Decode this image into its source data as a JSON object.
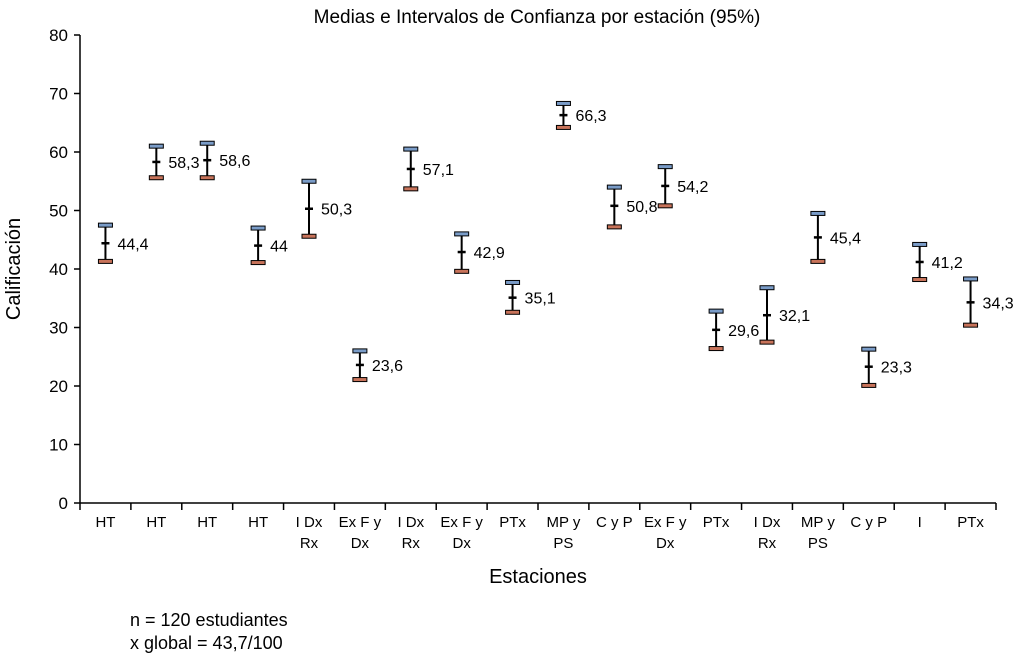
{
  "chart_data": {
    "type": "errorbar",
    "title": "Medias e Intervalos de Confianza por estación (95%)",
    "xlabel": "Estaciones",
    "ylabel": "Calificación",
    "ylim": [
      0,
      80
    ],
    "yticks": [
      0,
      10,
      20,
      30,
      40,
      50,
      60,
      70,
      80
    ],
    "grid": false,
    "categories": [
      [
        "HT"
      ],
      [
        "HT"
      ],
      [
        "HT"
      ],
      [
        "HT"
      ],
      [
        "I Dx",
        "Rx"
      ],
      [
        "Ex F y",
        "Dx"
      ],
      [
        "I Dx",
        "Rx"
      ],
      [
        "Ex F y",
        "Dx"
      ],
      [
        "PTx"
      ],
      [
        "MP y",
        "PS"
      ],
      [
        "C y P"
      ],
      [
        "Ex F y",
        "Dx"
      ],
      [
        "PTx"
      ],
      [
        "I Dx",
        "Rx"
      ],
      [
        "MP y",
        "PS"
      ],
      [
        "C y P"
      ],
      [
        "I"
      ],
      [
        "PTx"
      ]
    ],
    "means": [
      44.4,
      58.3,
      58.6,
      44,
      50.3,
      23.6,
      57.1,
      42.9,
      35.1,
      66.3,
      50.8,
      54.2,
      29.6,
      32.1,
      45.4,
      23.3,
      41.2,
      34.3
    ],
    "mean_labels": [
      "44,4",
      "58,3",
      "58,6",
      "44",
      "50,3",
      "23,6",
      "57,1",
      "42,9",
      "35,1",
      "66,3",
      "50,8",
      "54,2",
      "29,6",
      "32,1",
      "45,4",
      "23,3",
      "41,2",
      "34,3"
    ],
    "upper": [
      47.5,
      61,
      61.5,
      47,
      55,
      26,
      60.5,
      46,
      37.7,
      68.3,
      54,
      57.5,
      32.8,
      36.8,
      49.5,
      26.3,
      44.2,
      38.3
    ],
    "lower": [
      41.3,
      55.6,
      55.6,
      41.1,
      45.6,
      21.1,
      53.7,
      39.6,
      32.6,
      64.2,
      47.2,
      50.8,
      26.4,
      27.5,
      41.3,
      20.1,
      38.2,
      30.4
    ],
    "upper_cap_color": "#7a9cc8",
    "lower_cap_color": "#c8735a"
  },
  "notes": {
    "n_line": "n = 120 estudiantes",
    "global_line": "x global = 43,7/100"
  }
}
